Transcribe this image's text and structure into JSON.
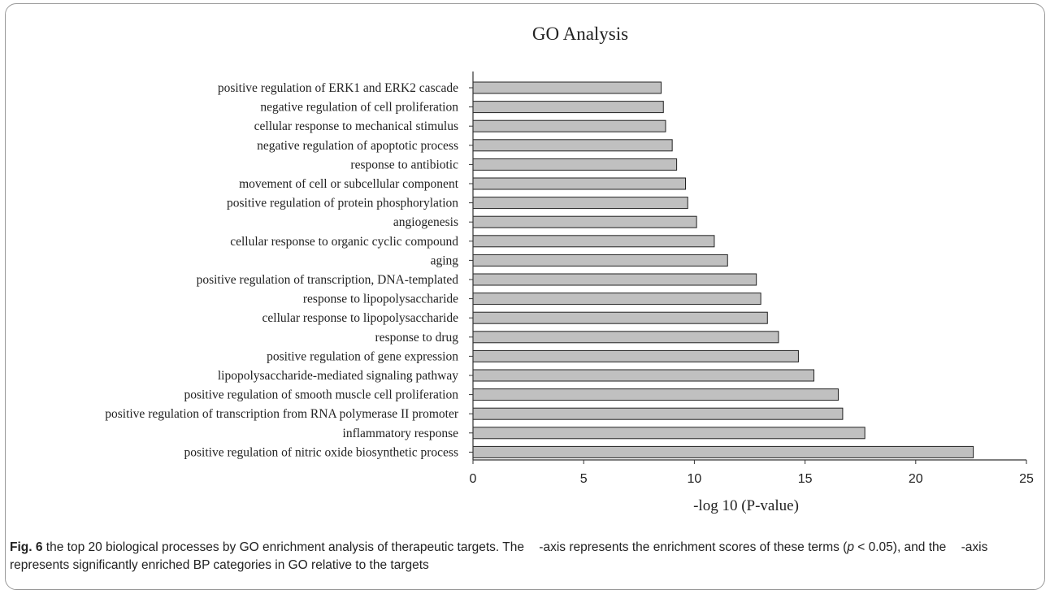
{
  "chart_data": {
    "type": "bar",
    "orientation": "horizontal",
    "title": "GO Analysis",
    "xlabel": "-log 10 (P-value)",
    "ylabel": "",
    "xlim": [
      0,
      25
    ],
    "xticks": [
      "0",
      "5",
      "10",
      "15",
      "20",
      "25"
    ],
    "grid": false,
    "bar_color": "#c0c0c0",
    "categories": [
      "positive regulation of ERK1 and ERK2 cascade",
      "negative regulation of cell proliferation",
      "cellular response to mechanical stimulus",
      "negative regulation of apoptotic process",
      "response to antibiotic",
      "movement of cell or subcellular component",
      "positive regulation of protein phosphorylation",
      "angiogenesis",
      "cellular response to organic cyclic compound",
      "aging",
      "positive regulation of transcription, DNA-templated",
      "response to lipopolysaccharide",
      "cellular response to lipopolysaccharide",
      "response to drug",
      "positive regulation of gene expression",
      "lipopolysaccharide-mediated signaling pathway",
      "positive regulation of smooth muscle cell proliferation",
      "positive regulation of transcription from RNA polymerase II promoter",
      "inflammatory response",
      "positive regulation of nitric oxide biosynthetic process"
    ],
    "values": [
      8.5,
      8.6,
      8.7,
      9.0,
      9.2,
      9.6,
      9.7,
      10.1,
      10.9,
      11.5,
      12.8,
      13.0,
      13.3,
      13.8,
      14.7,
      15.4,
      16.5,
      16.7,
      17.7,
      22.6
    ]
  },
  "caption": {
    "fig_label": "Fig. 6",
    "part1": " the top 20 biological processes by GO enrichment analysis of therapeutic targets. The ",
    "part2": "-axis represents the enrichment scores of these terms (",
    "p_symbol": "p",
    "part3": " < 0.05), and the ",
    "part4": "-axis represents significantly enriched BP categories in GO relative to the targets"
  }
}
